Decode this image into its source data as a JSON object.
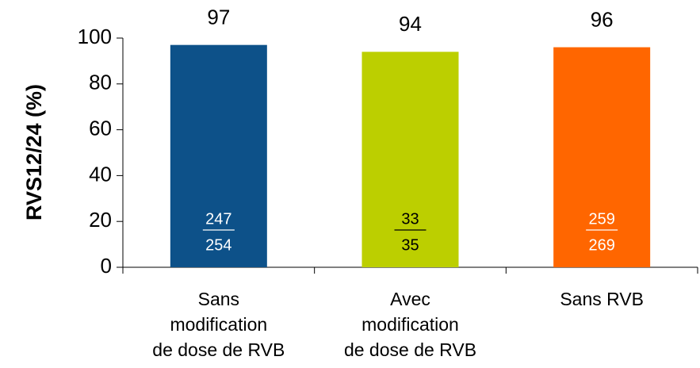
{
  "chart_data": {
    "type": "bar",
    "ylabel": "RVS12/24 (%)",
    "categories": [
      [
        "Sans",
        "modification",
        "de dose de RVB"
      ],
      [
        "Avec",
        "modification",
        "de dose de RVB"
      ],
      [
        "Sans RVB"
      ]
    ],
    "values": [
      97,
      94,
      96
    ],
    "colors": [
      "#0d5189",
      "#bccf00",
      "#ff6600"
    ],
    "fractions": [
      [
        247,
        254
      ],
      [
        33,
        35
      ],
      [
        259,
        269
      ]
    ],
    "fraction_colors": [
      "#ffffff",
      "#000000",
      "#ffffff"
    ],
    "ylim": [
      0,
      100
    ],
    "yticks": [
      0,
      20,
      40,
      60,
      80,
      100
    ]
  }
}
